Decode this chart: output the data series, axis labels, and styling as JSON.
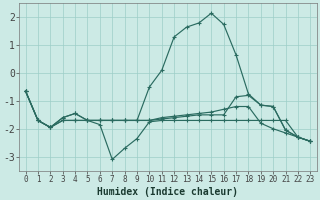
{
  "background_color": "#b8ddd8",
  "plot_bg": "#cceae5",
  "grid_color": "#9ecec8",
  "line_color": "#2a6b60",
  "xlabel": "Humidex (Indice chaleur)",
  "xlim": [
    -0.5,
    23.5
  ],
  "ylim": [
    -3.5,
    2.5
  ],
  "yticks": [
    -3,
    -2,
    -1,
    0,
    1,
    2
  ],
  "xticks": [
    0,
    1,
    2,
    3,
    4,
    5,
    6,
    7,
    8,
    9,
    10,
    11,
    12,
    13,
    14,
    15,
    16,
    17,
    18,
    19,
    20,
    21,
    22,
    23
  ],
  "lines": [
    [
      -0.65,
      -1.7,
      -1.95,
      -1.6,
      -1.45,
      -1.7,
      -1.85,
      -3.1,
      -2.7,
      -2.35,
      -1.75,
      -1.7,
      -1.7,
      -1.7,
      -1.7,
      -1.7,
      -1.7,
      -1.7,
      -1.7,
      -1.7,
      -1.7,
      -1.7,
      -2.3,
      -2.45
    ],
    [
      -0.65,
      -1.7,
      -1.95,
      -1.6,
      -1.45,
      -1.7,
      -1.7,
      -1.7,
      -1.7,
      -1.7,
      -0.5,
      0.1,
      1.3,
      1.65,
      1.8,
      2.15,
      1.75,
      0.65,
      -0.75,
      -1.15,
      -1.2,
      -2.05,
      -2.3,
      -2.45
    ],
    [
      -0.65,
      -1.7,
      -1.95,
      -1.7,
      -1.7,
      -1.7,
      -1.7,
      -1.7,
      -1.7,
      -1.7,
      -1.7,
      -1.6,
      -1.55,
      -1.5,
      -1.45,
      -1.4,
      -1.3,
      -1.2,
      -1.2,
      -1.8,
      -2.0,
      -2.15,
      -2.3,
      -2.45
    ],
    [
      -0.65,
      -1.7,
      -1.95,
      -1.7,
      -1.7,
      -1.7,
      -1.7,
      -1.7,
      -1.7,
      -1.7,
      -1.7,
      -1.65,
      -1.6,
      -1.55,
      -1.5,
      -1.5,
      -1.5,
      -0.85,
      -0.8,
      -1.15,
      -1.2,
      -2.05,
      -2.3,
      -2.45
    ]
  ]
}
